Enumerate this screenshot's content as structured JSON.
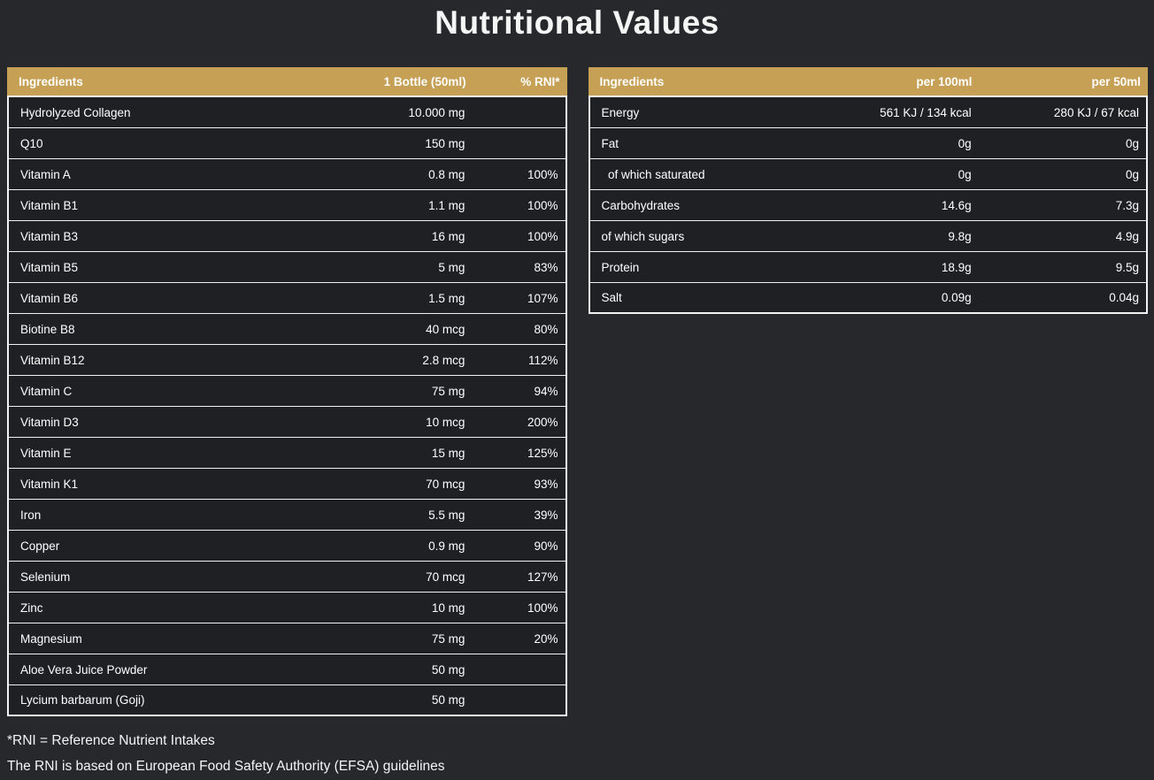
{
  "title": "Nutritional Values",
  "colors": {
    "background": "#26282c",
    "row_background": "#1e2024",
    "header_gold": "#c6a054",
    "border_white": "#f2f2f2",
    "text": "#ffffff"
  },
  "tables": [
    {
      "name": "supplement-facts",
      "columns": [
        "Ingredients",
        "1 Bottle (50ml)",
        "% RNI*"
      ],
      "rows": [
        [
          "Hydrolyzed Collagen",
          "10.000 mg",
          ""
        ],
        [
          "Q10",
          "150 mg",
          ""
        ],
        [
          "Vitamin A",
          "0.8 mg",
          "100%"
        ],
        [
          "Vitamin B1",
          "1.1 mg",
          "100%"
        ],
        [
          "Vitamin B3",
          "16 mg",
          "100%"
        ],
        [
          "Vitamin B5",
          "5 mg",
          "83%"
        ],
        [
          "Vitamin B6",
          "1.5 mg",
          "107%"
        ],
        [
          "Biotine B8",
          "40 mcg",
          "80%"
        ],
        [
          "Vitamin B12",
          "2.8 mcg",
          "112%"
        ],
        [
          "Vitamin C",
          "75 mg",
          "94%"
        ],
        [
          "Vitamin D3",
          "10 mcg",
          "200%"
        ],
        [
          "Vitamin E",
          "15 mg",
          "125%"
        ],
        [
          "Vitamin K1",
          "70 mcg",
          "93%"
        ],
        [
          "Iron",
          "5.5 mg",
          "39%"
        ],
        [
          "Copper",
          "0.9 mg",
          "90%"
        ],
        [
          "Selenium",
          "70 mcg",
          "127%"
        ],
        [
          "Zinc",
          "10 mg",
          "100%"
        ],
        [
          "Magnesium",
          "75 mg",
          "20%"
        ],
        [
          "Aloe Vera Juice Powder",
          "50 mg",
          ""
        ],
        [
          "Lycium barbarum (Goji)",
          "50 mg",
          ""
        ]
      ]
    },
    {
      "name": "nutrition-facts",
      "columns": [
        "Ingredients",
        "per 100ml",
        "per 50ml"
      ],
      "rows": [
        [
          "Energy",
          "561 KJ / 134 kcal",
          "280 KJ / 67 kcal"
        ],
        [
          "Fat",
          "0g",
          "0g"
        ],
        [
          "  of which saturated",
          "0g",
          "0g"
        ],
        [
          "Carbohydrates",
          "14.6g",
          "7.3g"
        ],
        [
          "of which sugars",
          "9.8g",
          "4.9g"
        ],
        [
          "Protein",
          "18.9g",
          "9.5g"
        ],
        [
          "Salt",
          "0.09g",
          "0.04g"
        ]
      ]
    }
  ],
  "footnotes": [
    "*RNI = Reference Nutrient Intakes",
    "The RNI is based on European Food Safety Authority (EFSA) guidelines"
  ]
}
